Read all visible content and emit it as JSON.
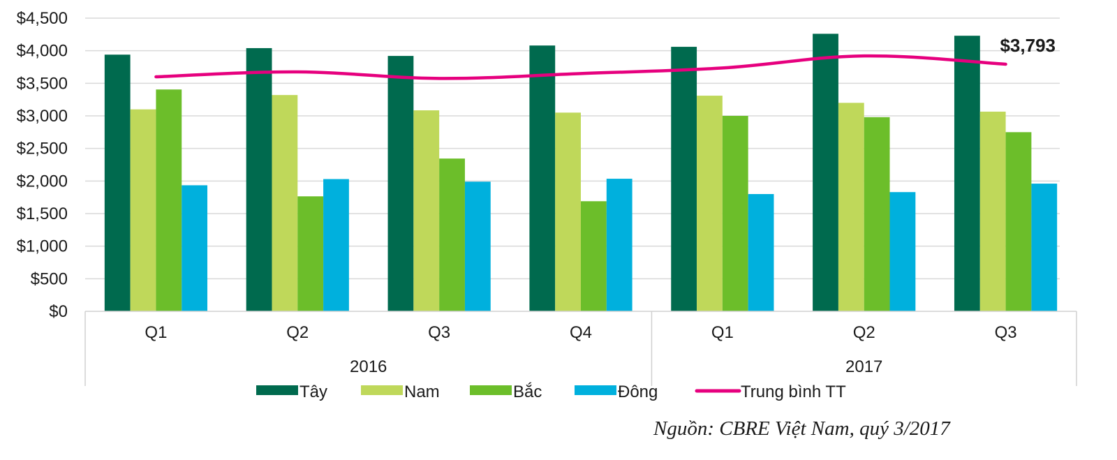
{
  "chart_data": {
    "type": "bar",
    "title": "",
    "xlabel": "",
    "ylabel": "",
    "ylim": [
      0,
      4500
    ],
    "yticks": [
      0,
      500,
      1000,
      1500,
      2000,
      2500,
      3000,
      3500,
      4000,
      4500
    ],
    "ytick_labels": [
      "$0",
      "$500",
      "$1,000",
      "$1,500",
      "$2,000",
      "$2,500",
      "$3,000",
      "$3,500",
      "$4,000",
      "$4,500"
    ],
    "grid": true,
    "categories": [
      "Q1",
      "Q2",
      "Q3",
      "Q4",
      "Q1",
      "Q2",
      "Q3"
    ],
    "groups": [
      {
        "label": "2016",
        "count": 4
      },
      {
        "label": "2017",
        "count": 3
      }
    ],
    "series": [
      {
        "name": "Tây",
        "kind": "bar",
        "color": "#006a4e",
        "values": [
          3940,
          4040,
          3920,
          4080,
          4060,
          4260,
          4230
        ]
      },
      {
        "name": "Nam",
        "kind": "bar",
        "color": "#bfd85a",
        "values": [
          3100,
          3320,
          3085,
          3050,
          3310,
          3200,
          3065
        ]
      },
      {
        "name": "Bắc",
        "kind": "bar",
        "color": "#6cbe2a",
        "values": [
          3405,
          1765,
          2345,
          1690,
          3000,
          2980,
          2750
        ]
      },
      {
        "name": "Đông",
        "kind": "bar",
        "color": "#00b0dd",
        "values": [
          1935,
          2030,
          1990,
          2035,
          1800,
          1830,
          1960
        ]
      },
      {
        "name": "Trung bình TT",
        "kind": "line",
        "color": "#e6007e",
        "values": [
          3600,
          3675,
          3575,
          3650,
          3735,
          3920,
          3793
        ]
      }
    ],
    "annotations": [
      {
        "text": "$3,793",
        "series": "Trung bình TT",
        "category_index": 6
      }
    ],
    "legend": {
      "position": "bottom",
      "entries": [
        "Tây",
        "Nam",
        "Bắc",
        "Đông",
        "Trung bình TT"
      ]
    }
  },
  "source_note": "Nguồn: CBRE Việt Nam, quý 3/2017"
}
